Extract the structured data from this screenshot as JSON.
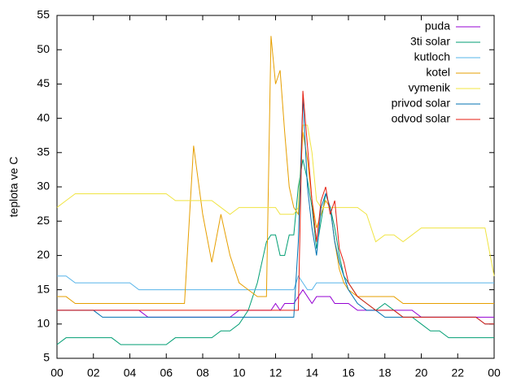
{
  "chart_data": {
    "type": "line",
    "ylabel": "teplota ve C",
    "x": [
      0,
      0.5,
      1,
      1.5,
      2,
      2.5,
      3,
      3.5,
      4,
      4.5,
      5,
      5.5,
      6,
      6.5,
      7,
      7.5,
      8,
      8.5,
      9,
      9.5,
      10,
      10.5,
      11,
      11.25,
      11.5,
      11.75,
      12,
      12.25,
      12.5,
      12.75,
      13,
      13.25,
      13.5,
      13.75,
      14,
      14.25,
      14.5,
      14.75,
      15,
      15.25,
      15.5,
      15.75,
      16,
      16.5,
      17,
      17.5,
      18,
      18.5,
      19,
      19.5,
      20,
      20.5,
      21,
      21.5,
      22,
      22.5,
      23,
      23.5,
      24
    ],
    "series": [
      {
        "name": "puda",
        "color": "#9400d3",
        "values": [
          12,
          12,
          12,
          12,
          12,
          12,
          12,
          12,
          12,
          12,
          11,
          11,
          11,
          11,
          11,
          11,
          11,
          11,
          11,
          11,
          12,
          12,
          12,
          12,
          12,
          12,
          13,
          12,
          13,
          13,
          13,
          14,
          15,
          14,
          13,
          14,
          14,
          14,
          14,
          13,
          13,
          13,
          13,
          12,
          12,
          12,
          12,
          12,
          12,
          12,
          11,
          11,
          11,
          11,
          11,
          11,
          11,
          11,
          11
        ]
      },
      {
        "name": "3ti solar",
        "color": "#009e73",
        "values": [
          7,
          8,
          8,
          8,
          8,
          8,
          8,
          7,
          7,
          7,
          7,
          7,
          7,
          8,
          8,
          8,
          8,
          8,
          9,
          9,
          10,
          12,
          16,
          19,
          22,
          23,
          23,
          20,
          20,
          23,
          23,
          30,
          34,
          31,
          27,
          21,
          25,
          29,
          27,
          24,
          20,
          17,
          16,
          14,
          13,
          12,
          13,
          12,
          11,
          11,
          10,
          9,
          9,
          8,
          8,
          8,
          8,
          8,
          8
        ]
      },
      {
        "name": "kutloch",
        "color": "#56b4e9",
        "values": [
          17,
          17,
          16,
          16,
          16,
          16,
          16,
          16,
          16,
          15,
          15,
          15,
          15,
          15,
          15,
          15,
          15,
          15,
          15,
          15,
          15,
          15,
          15,
          15,
          15,
          15,
          15,
          15,
          15,
          15,
          15,
          17,
          16,
          15,
          15,
          16,
          16,
          16,
          16,
          16,
          16,
          16,
          16,
          16,
          16,
          16,
          16,
          16,
          16,
          16,
          16,
          16,
          16,
          16,
          16,
          16,
          16,
          16,
          16
        ]
      },
      {
        "name": "kotel",
        "color": "#e69f00",
        "values": [
          14,
          14,
          13,
          13,
          13,
          13,
          13,
          13,
          13,
          13,
          13,
          13,
          13,
          13,
          13,
          36,
          26,
          19,
          26,
          20,
          16,
          15,
          14,
          14,
          14,
          52,
          45,
          47,
          38,
          30,
          27,
          26,
          38,
          34,
          28,
          24,
          26,
          28,
          27,
          22,
          18,
          16,
          15,
          14,
          14,
          14,
          14,
          14,
          13,
          13,
          13,
          13,
          13,
          13,
          13,
          13,
          13,
          13,
          13
        ]
      },
      {
        "name": "vymenik",
        "color": "#f0e442",
        "values": [
          27,
          28,
          29,
          29,
          29,
          29,
          29,
          29,
          29,
          29,
          29,
          29,
          29,
          28,
          28,
          28,
          28,
          28,
          27,
          26,
          27,
          27,
          27,
          27,
          27,
          27,
          27,
          26,
          26,
          26,
          26,
          27,
          39,
          39,
          35,
          28,
          27,
          27,
          27,
          27,
          27,
          27,
          27,
          27,
          26,
          22,
          23,
          23,
          22,
          23,
          24,
          24,
          24,
          24,
          24,
          24,
          24,
          24,
          17
        ]
      },
      {
        "name": "privod solar",
        "color": "#0072b2",
        "values": [
          12,
          12,
          12,
          12,
          12,
          11,
          11,
          11,
          11,
          11,
          11,
          11,
          11,
          11,
          11,
          11,
          11,
          11,
          11,
          11,
          11,
          11,
          11,
          11,
          11,
          11,
          11,
          11,
          11,
          11,
          11,
          22,
          43,
          30,
          24,
          20,
          27,
          29,
          27,
          22,
          19,
          17,
          15,
          13,
          12,
          12,
          11,
          11,
          11,
          11,
          11,
          11,
          11,
          11,
          11,
          11,
          11,
          10,
          10
        ]
      },
      {
        "name": "odvod solar",
        "color": "#e51e10",
        "values": [
          12,
          12,
          12,
          12,
          12,
          12,
          12,
          12,
          12,
          12,
          12,
          12,
          12,
          12,
          12,
          12,
          12,
          12,
          12,
          12,
          12,
          12,
          12,
          12,
          12,
          12,
          12,
          12,
          12,
          12,
          12,
          12,
          44,
          36,
          28,
          22,
          28,
          30,
          26,
          28,
          21,
          19,
          16,
          14,
          13,
          12,
          12,
          12,
          11,
          11,
          11,
          11,
          11,
          11,
          11,
          11,
          11,
          10,
          10
        ]
      }
    ],
    "xlim": [
      0,
      24
    ],
    "xticks": [
      {
        "value": 0,
        "label": "00"
      },
      {
        "value": 2,
        "label": "02"
      },
      {
        "value": 4,
        "label": "04"
      },
      {
        "value": 6,
        "label": "06"
      },
      {
        "value": 8,
        "label": "08"
      },
      10,
      12,
      14,
      16,
      18,
      20,
      22,
      {
        "value": 24,
        "label": "00"
      }
    ],
    "ylim": [
      5,
      55
    ],
    "yticks": [
      5,
      10,
      15,
      20,
      25,
      30,
      35,
      40,
      45,
      50,
      55
    ],
    "legend": "upper right"
  }
}
